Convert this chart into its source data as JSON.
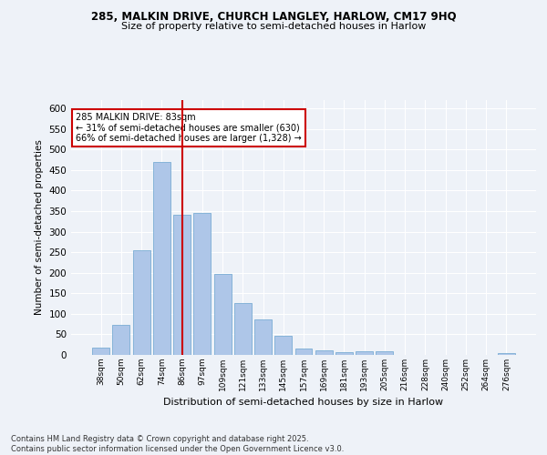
{
  "title1": "285, MALKIN DRIVE, CHURCH LANGLEY, HARLOW, CM17 9HQ",
  "title2": "Size of property relative to semi-detached houses in Harlow",
  "xlabel": "Distribution of semi-detached houses by size in Harlow",
  "ylabel": "Number of semi-detached properties",
  "categories": [
    "38sqm",
    "50sqm",
    "62sqm",
    "74sqm",
    "86sqm",
    "97sqm",
    "109sqm",
    "121sqm",
    "133sqm",
    "145sqm",
    "157sqm",
    "169sqm",
    "181sqm",
    "193sqm",
    "205sqm",
    "216sqm",
    "228sqm",
    "240sqm",
    "252sqm",
    "264sqm",
    "276sqm"
  ],
  "values": [
    17,
    73,
    255,
    470,
    340,
    345,
    197,
    126,
    87,
    47,
    16,
    10,
    7,
    8,
    8,
    0,
    0,
    0,
    0,
    0,
    4
  ],
  "bar_color": "#aec6e8",
  "bar_edge_color": "#7aadd4",
  "vline_x": 4.0,
  "vline_color": "#cc0000",
  "annotation_text": "285 MALKIN DRIVE: 83sqm\n← 31% of semi-detached houses are smaller (630)\n66% of semi-detached houses are larger (1,328) →",
  "annotation_box_color": "#ffffff",
  "annotation_box_edge": "#cc0000",
  "ylim": [
    0,
    620
  ],
  "yticks": [
    0,
    50,
    100,
    150,
    200,
    250,
    300,
    350,
    400,
    450,
    500,
    550,
    600
  ],
  "footer": "Contains HM Land Registry data © Crown copyright and database right 2025.\nContains public sector information licensed under the Open Government Licence v3.0.",
  "background_color": "#eef2f8",
  "grid_color": "#ffffff"
}
